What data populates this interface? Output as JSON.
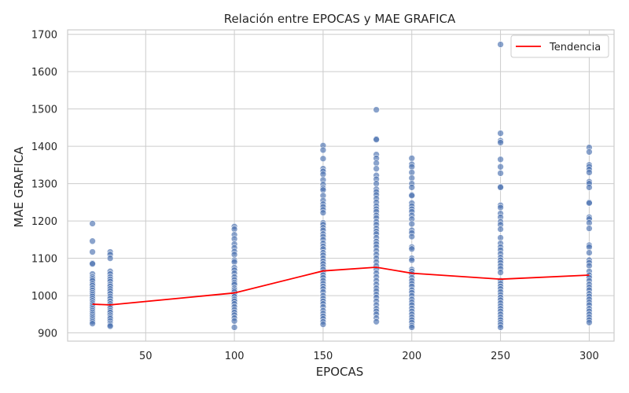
{
  "chart_data": {
    "type": "scatter",
    "title": "Relación entre EPOCAS y MAE GRAFICA",
    "xlabel": "EPOCAS",
    "ylabel": "MAE GRAFICA",
    "xlim": [
      6,
      314
    ],
    "ylim": [
      878,
      1712
    ],
    "xticks": [
      50,
      100,
      150,
      200,
      250,
      300
    ],
    "yticks": [
      900,
      1000,
      1100,
      1200,
      1300,
      1400,
      1500,
      1600,
      1700
    ],
    "grid": true,
    "legend_position": "top-right",
    "colors": {
      "points": "#4c72b0",
      "trend": "#ff0000",
      "grid": "#cccccc",
      "frame": "#cccccc"
    },
    "series": [
      {
        "kind": "scatter",
        "groups": [
          {
            "x": 20,
            "y": [
              1193,
              1146,
              1117,
              1087,
              1085,
              1058,
              1050,
              1045,
              1040,
              1032,
              1027,
              1020,
              1014,
              1008,
              1003,
              998,
              992,
              986,
              980,
              975,
              970,
              965,
              960,
              955,
              950,
              945,
              940,
              935,
              930,
              925
            ]
          },
          {
            "x": 30,
            "y": [
              1117,
              1110,
              1100,
              1065,
              1058,
              1050,
              1044,
              1038,
              1030,
              1025,
              1018,
              1012,
              1005,
              998,
              992,
              985,
              978,
              972,
              966,
              960,
              955,
              948,
              942,
              938,
              932,
              926,
              921,
              918
            ]
          },
          {
            "x": 100,
            "y": [
              1185,
              1178,
              1163,
              1152,
              1138,
              1128,
              1118,
              1110,
              1095,
              1090,
              1075,
              1068,
              1060,
              1050,
              1042,
              1035,
              1030,
              1020,
              1015,
              1010,
              1003,
              997,
              990,
              985,
              978,
              970,
              962,
              955,
              948,
              940,
              932,
              915
            ]
          },
          {
            "x": 150,
            "y": [
              1402,
              1390,
              1367,
              1340,
              1333,
              1325,
              1310,
              1298,
              1288,
              1283,
              1268,
              1255,
              1245,
              1238,
              1230,
              1222,
              1195,
              1190,
              1182,
              1175,
              1165,
              1158,
              1150,
              1140,
              1132,
              1125,
              1115,
              1108,
              1100,
              1092,
              1085,
              1077,
              1070,
              1062,
              1055,
              1048,
              1040,
              1032,
              1025,
              1018,
              1010,
              1000,
              992,
              985,
              978,
              970,
              960,
              952,
              945,
              938,
              930,
              923
            ]
          },
          {
            "x": 180,
            "y": [
              1498,
              1420,
              1418,
              1378,
              1368,
              1355,
              1340,
              1322,
              1312,
              1300,
              1285,
              1278,
              1270,
              1260,
              1250,
              1240,
              1232,
              1225,
              1215,
              1208,
              1198,
              1190,
              1180,
              1172,
              1165,
              1155,
              1145,
              1138,
              1130,
              1120,
              1110,
              1100,
              1090,
              1080,
              1070,
              1060,
              1050,
              1040,
              1030,
              1020,
              1012,
              1003,
              995,
              985,
              975,
              965,
              958,
              950,
              940,
              930
            ]
          },
          {
            "x": 200,
            "y": [
              1368,
              1352,
              1345,
              1330,
              1315,
              1300,
              1290,
              1270,
              1268,
              1248,
              1240,
              1232,
              1225,
              1215,
              1205,
              1192,
              1175,
              1168,
              1158,
              1130,
              1125,
              1100,
              1095,
              1070,
              1065,
              1058,
              1048,
              1040,
              1032,
              1025,
              1015,
              1008,
              1000,
              990,
              982,
              975,
              966,
              958,
              950,
              942,
              935,
              928,
              920,
              915
            ]
          },
          {
            "x": 250,
            "y": [
              1673,
              1435,
              1415,
              1410,
              1365,
              1345,
              1328,
              1292,
              1290,
              1242,
              1236,
              1220,
              1210,
              1198,
              1190,
              1178,
              1155,
              1140,
              1130,
              1122,
              1112,
              1102,
              1095,
              1088,
              1080,
              1072,
              1062,
              1040,
              1032,
              1025,
              1018,
              1010,
              1002,
              995,
              988,
              980,
              972,
              965,
              958,
              950,
              942,
              935,
              928,
              922,
              915
            ]
          },
          {
            "x": 300,
            "y": [
              1397,
              1385,
              1350,
              1345,
              1338,
              1330,
              1305,
              1300,
              1290,
              1250,
              1248,
              1210,
              1205,
              1195,
              1180,
              1135,
              1130,
              1115,
              1095,
              1088,
              1080,
              1065,
              1055,
              1048,
              1040,
              1030,
              1022,
              1015,
              1005,
              998,
              990,
              982,
              975,
              965,
              958,
              950,
              942,
              935,
              928
            ]
          }
        ]
      },
      {
        "name": "Tendencia",
        "kind": "line",
        "x": [
          20,
          30,
          100,
          150,
          180,
          200,
          250,
          300
        ],
        "y": [
          977,
          975,
          1007,
          1066,
          1076,
          1060,
          1044,
          1055
        ]
      }
    ]
  }
}
